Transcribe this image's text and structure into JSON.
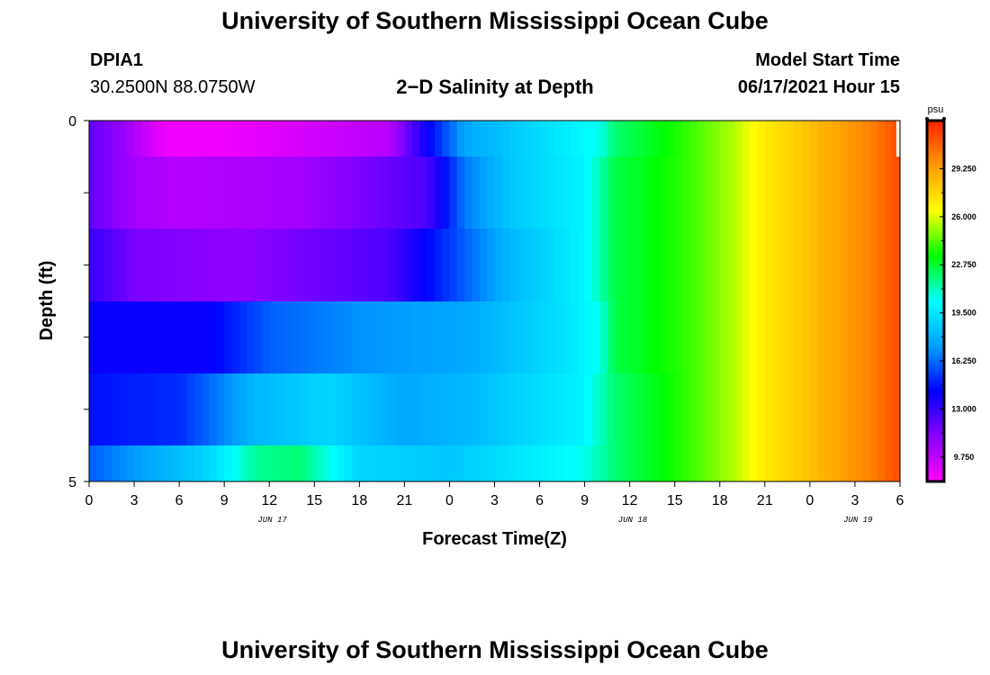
{
  "header": {
    "title": "University of Southern Mississippi Ocean Cube",
    "station": "DPIA1",
    "coords": "30.2500N  88.0750W",
    "plot_title": "2−D Salinity at Depth",
    "model_start_label": "Model Start Time",
    "model_start_value": "06/17/2021 Hour 15"
  },
  "footer": {
    "title": "University of Southern Mississippi Ocean Cube"
  },
  "colors": {
    "palette": [
      "#ff00ff",
      "#8a00ff",
      "#0000ff",
      "#00a0ff",
      "#00ffff",
      "#00ff00",
      "#ffff00",
      "#ff9900",
      "#ff2200"
    ]
  },
  "chart_data": {
    "type": "heatmap",
    "title": "2−D Salinity at Depth",
    "xlabel": "Forecast Time(Z)",
    "ylabel": "Depth (ft)",
    "units": "psu",
    "x_tick_labels": [
      "0",
      "3",
      "6",
      "9",
      "12",
      "15",
      "18",
      "21",
      "0",
      "3",
      "6",
      "9",
      "12",
      "15",
      "18",
      "21",
      "0",
      "3",
      "6"
    ],
    "date_labels": [
      "JUN 17",
      "JUN 18",
      "JUN 19"
    ],
    "y_tick_labels": [
      "0",
      "5"
    ],
    "ylim": [
      0,
      5
    ],
    "x_range_hours": [
      0,
      54
    ],
    "colorbar_ticks": [
      "29.250",
      "26.000",
      "22.750",
      "19.500",
      "16.250",
      "13.000",
      "9.750"
    ],
    "colorbar_range": [
      8.1,
      32.5
    ],
    "depth_layers": [
      0.25,
      1.0,
      2.0,
      3.0,
      4.0,
      4.75
    ],
    "layer_keyframes": [
      [
        [
          0,
          12
        ],
        [
          2,
          11
        ],
        [
          5,
          8.5
        ],
        [
          9,
          8.5
        ],
        [
          20,
          10
        ],
        [
          22.5,
          14
        ],
        [
          25,
          17.5
        ],
        [
          28,
          18.5
        ],
        [
          34,
          20.5
        ],
        [
          35,
          22
        ],
        [
          40,
          24
        ],
        [
          43,
          25.5
        ],
        [
          45,
          27
        ],
        [
          52,
          30
        ],
        [
          54,
          31.5
        ]
      ],
      [
        [
          0,
          12
        ],
        [
          3,
          10.5
        ],
        [
          6,
          10
        ],
        [
          14,
          10.5
        ],
        [
          22.5,
          12.5
        ],
        [
          25,
          16.5
        ],
        [
          28,
          18.5
        ],
        [
          33,
          20
        ],
        [
          35,
          22.5
        ],
        [
          40,
          24
        ],
        [
          43,
          25.5
        ],
        [
          45,
          27
        ],
        [
          52,
          30
        ],
        [
          54,
          31.5
        ]
      ],
      [
        [
          0,
          13
        ],
        [
          3,
          11.5
        ],
        [
          10,
          11
        ],
        [
          20,
          12.5
        ],
        [
          25,
          16
        ],
        [
          28,
          18
        ],
        [
          33,
          20
        ],
        [
          35,
          22.5
        ],
        [
          40,
          24
        ],
        [
          43,
          25.5
        ],
        [
          45,
          27
        ],
        [
          52,
          30
        ],
        [
          54,
          31.5
        ]
      ],
      [
        [
          0,
          14
        ],
        [
          8,
          14
        ],
        [
          12,
          16
        ],
        [
          18,
          17
        ],
        [
          25,
          17.5
        ],
        [
          32,
          19.5
        ],
        [
          34,
          20.5
        ],
        [
          35,
          22.5
        ],
        [
          40,
          24
        ],
        [
          43,
          25.5
        ],
        [
          45,
          27
        ],
        [
          52,
          30
        ],
        [
          54,
          31.5
        ]
      ],
      [
        [
          0,
          14.5
        ],
        [
          6,
          15
        ],
        [
          11,
          18
        ],
        [
          16,
          19
        ],
        [
          21,
          17.5
        ],
        [
          25,
          18
        ],
        [
          33,
          20
        ],
        [
          35,
          22
        ],
        [
          40,
          24
        ],
        [
          43,
          25.5
        ],
        [
          45,
          27
        ],
        [
          52,
          30
        ],
        [
          54,
          31.5
        ]
      ],
      [
        [
          0,
          16
        ],
        [
          8,
          19
        ],
        [
          11,
          21.5
        ],
        [
          14,
          22
        ],
        [
          18,
          19
        ],
        [
          24,
          18.5
        ],
        [
          33,
          20.5
        ],
        [
          35,
          22
        ],
        [
          40,
          24
        ],
        [
          43,
          25.5
        ],
        [
          45,
          27
        ],
        [
          52,
          30
        ],
        [
          54,
          31.5
        ]
      ]
    ]
  }
}
